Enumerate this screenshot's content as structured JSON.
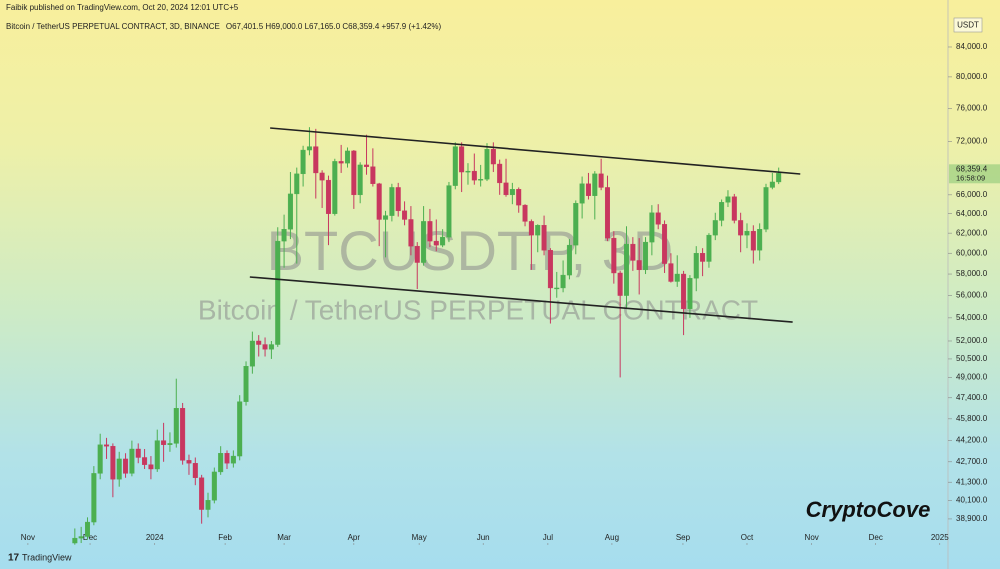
{
  "chart_data": {
    "type": "candlestick",
    "publisher_line": "Faibik published on TradingView.com, Oct 20, 2024 12:01 UTC+5",
    "symbol_line": "Bitcoin / TetherUS PERPETUAL CONTRACT, 3D, BINANCE",
    "ohlc_line": "O67,401.5 H69,000.0 L67,165.0 C68,359.4 +957.9 (+1.42%)",
    "watermark_symbol": "BTCUSDT.P, 3D",
    "watermark_name": "Bitcoin / TetherUS PERPETUAL CONTRACT",
    "currency": "USDT",
    "last_price_label": "68,359.4",
    "countdown": "16:58:09",
    "brand": "CryptoCove",
    "footer": "TradingView",
    "log_scale": true,
    "grid": false,
    "up_color": "#4caf50",
    "down_color": "#c8375f",
    "trendline_color": "#222222",
    "open": [
      37400,
      37700,
      37800,
      38700,
      41900,
      43900,
      43800,
      41500,
      42900,
      41900,
      43600,
      43000,
      42500,
      42200,
      44200,
      43900,
      44000,
      46600,
      42800,
      42600,
      41600,
      39500,
      40100,
      42000,
      43300,
      42600,
      43100,
      47100,
      49900,
      52000,
      51700,
      51300,
      51700,
      61200,
      62400,
      66100,
      68300,
      71000,
      71400,
      68400,
      67600,
      64000,
      69700,
      69500,
      70900,
      66000,
      69300,
      69100,
      67200,
      63400,
      63800,
      66800,
      64300,
      63400,
      60700,
      59100,
      63200,
      61200,
      60800,
      61600,
      67000,
      71400,
      68500,
      68600,
      67600,
      67700,
      71100,
      69400,
      67300,
      66000,
      66600,
      64900,
      63200,
      61800,
      62800,
      60300,
      56700,
      56700,
      57900,
      60800,
      65100,
      67200,
      65900,
      68300,
      66800,
      61500,
      58100,
      56000,
      60900,
      59300,
      58400,
      61100,
      64100,
      62900,
      59000,
      57300,
      58000,
      54800,
      57600,
      60000,
      59200,
      61800,
      63300,
      65200,
      65800,
      63300,
      61800,
      62200,
      60300,
      62400,
      66800,
      67401.5
    ],
    "high": [
      38300,
      38400,
      39000,
      42400,
      44700,
      44400,
      44000,
      43400,
      43300,
      44200,
      44000,
      43600,
      43100,
      45000,
      45500,
      44800,
      48900,
      47000,
      43200,
      43000,
      41800,
      40600,
      42300,
      43800,
      43500,
      43500,
      47600,
      50300,
      52800,
      52500,
      52300,
      52000,
      62600,
      63900,
      68500,
      69000,
      71500,
      73700,
      73500,
      68700,
      68100,
      70000,
      71600,
      71300,
      71000,
      69600,
      72800,
      71200,
      67300,
      64300,
      67200,
      67300,
      65300,
      64800,
      61100,
      64800,
      64500,
      63400,
      62400,
      67400,
      71900,
      71900,
      69500,
      70600,
      69300,
      71800,
      71900,
      69900,
      70000,
      67300,
      66800,
      65000,
      63400,
      62900,
      63800,
      60500,
      58200,
      59300,
      61400,
      65400,
      68000,
      68400,
      68600,
      70000,
      68100,
      62200,
      58300,
      62700,
      61600,
      61500,
      61600,
      64900,
      65000,
      63300,
      60000,
      59800,
      58300,
      57900,
      60700,
      60500,
      62000,
      64100,
      65500,
      66500,
      66100,
      64100,
      63000,
      62800,
      63000,
      67200,
      68400,
      69000
    ],
    "low": [
      37300,
      37400,
      37600,
      38500,
      41500,
      42900,
      40300,
      41000,
      41600,
      41700,
      42600,
      42200,
      41500,
      42000,
      42700,
      43400,
      43700,
      42500,
      41800,
      41100,
      38600,
      39000,
      39900,
      41800,
      42200,
      42300,
      42800,
      46800,
      49300,
      50700,
      50700,
      50500,
      51500,
      58600,
      61400,
      59000,
      66900,
      70400,
      65600,
      64600,
      60800,
      63800,
      68400,
      69000,
      64500,
      65100,
      68200,
      66900,
      60700,
      59600,
      63200,
      63700,
      62800,
      59800,
      56600,
      58800,
      60600,
      60200,
      60600,
      61100,
      66600,
      66300,
      67100,
      67100,
      66900,
      67500,
      68500,
      66000,
      65800,
      65000,
      64100,
      62700,
      58400,
      60100,
      59800,
      53500,
      55800,
      56300,
      57500,
      59900,
      63500,
      65500,
      63400,
      66500,
      61200,
      57100,
      49000,
      54800,
      58300,
      56100,
      58000,
      59800,
      62400,
      58100,
      57200,
      56800,
      52500,
      54000,
      56400,
      57800,
      58600,
      61300,
      62700,
      64700,
      63000,
      60100,
      60500,
      59000,
      59300,
      62100,
      66600,
      67165
    ],
    "close": [
      37700,
      37800,
      38700,
      41900,
      43900,
      43800,
      41500,
      42900,
      41900,
      43600,
      43000,
      42500,
      42200,
      44200,
      43900,
      44000,
      46600,
      42800,
      42600,
      41600,
      39500,
      40100,
      42000,
      43300,
      42600,
      43100,
      47100,
      49900,
      52000,
      51700,
      51300,
      51700,
      61200,
      62400,
      66100,
      68300,
      71000,
      71400,
      68400,
      67600,
      64000,
      69700,
      69500,
      70900,
      66000,
      69300,
      69100,
      67200,
      63400,
      63800,
      66800,
      64300,
      63400,
      60700,
      59100,
      63200,
      61200,
      60800,
      61600,
      67000,
      71400,
      68500,
      68600,
      67600,
      67700,
      71100,
      69400,
      67300,
      66000,
      66600,
      64900,
      63200,
      61800,
      62800,
      60300,
      56700,
      56700,
      57900,
      60800,
      65100,
      67200,
      65900,
      68300,
      66800,
      61500,
      58100,
      56000,
      60900,
      59300,
      58400,
      61100,
      64100,
      62900,
      59000,
      57300,
      58000,
      54800,
      57600,
      60000,
      59200,
      61800,
      63300,
      65200,
      65800,
      63300,
      61800,
      62200,
      60300,
      62400,
      66800,
      67401.5,
      68359.4
    ],
    "trendlines": [
      {
        "x": [
          30.8,
          114.4
        ],
        "y": [
          73600,
          68280
        ]
      },
      {
        "x": [
          27.6,
          113.2
        ],
        "y": [
          57720,
          53630
        ]
      }
    ],
    "xlim": [
      -11.8,
      137.7
    ],
    "xticks": [
      {
        "value": -7.4,
        "label": "Nov"
      },
      {
        "value": 2.4,
        "label": "Dec"
      },
      {
        "value": 12.6,
        "label": "2024"
      },
      {
        "value": 23.7,
        "label": "Feb"
      },
      {
        "value": 33,
        "label": "Mar"
      },
      {
        "value": 44,
        "label": "Apr"
      },
      {
        "value": 54.3,
        "label": "May"
      },
      {
        "value": 64.4,
        "label": "Jun"
      },
      {
        "value": 74.6,
        "label": "Jul"
      },
      {
        "value": 84.7,
        "label": "Aug"
      },
      {
        "value": 95.9,
        "label": "Sep"
      },
      {
        "value": 106,
        "label": "Oct"
      },
      {
        "value": 116.2,
        "label": "Nov"
      },
      {
        "value": 126.3,
        "label": "Dec"
      },
      {
        "value": 136.4,
        "label": "2025"
      }
    ],
    "ylim": [
      37280,
      87780
    ],
    "yticks": [
      {
        "value": 38900,
        "label": "38,900.0"
      },
      {
        "value": 40100,
        "label": "40,100.0"
      },
      {
        "value": 41300,
        "label": "41,300.0"
      },
      {
        "value": 42700,
        "label": "42,700.0"
      },
      {
        "value": 44200,
        "label": "44,200.0"
      },
      {
        "value": 45800,
        "label": "45,800.0"
      },
      {
        "value": 47400,
        "label": "47,400.0"
      },
      {
        "value": 49000,
        "label": "49,000.0"
      },
      {
        "value": 50500,
        "label": "50,500.0"
      },
      {
        "value": 52000,
        "label": "52,000.0"
      },
      {
        "value": 54000,
        "label": "54,000.0"
      },
      {
        "value": 56000,
        "label": "56,000.0"
      },
      {
        "value": 58000,
        "label": "58,000.0"
      },
      {
        "value": 60000,
        "label": "60,000.0"
      },
      {
        "value": 62000,
        "label": "62,000.0"
      },
      {
        "value": 64000,
        "label": "64,000.0"
      },
      {
        "value": 66000,
        "label": "66,000.0"
      },
      {
        "value": 72000,
        "label": "72,000.0"
      },
      {
        "value": 76000,
        "label": "76,000.0"
      },
      {
        "value": 80000,
        "label": "80,000.0"
      },
      {
        "value": 84000,
        "label": "84,000.0"
      }
    ]
  }
}
